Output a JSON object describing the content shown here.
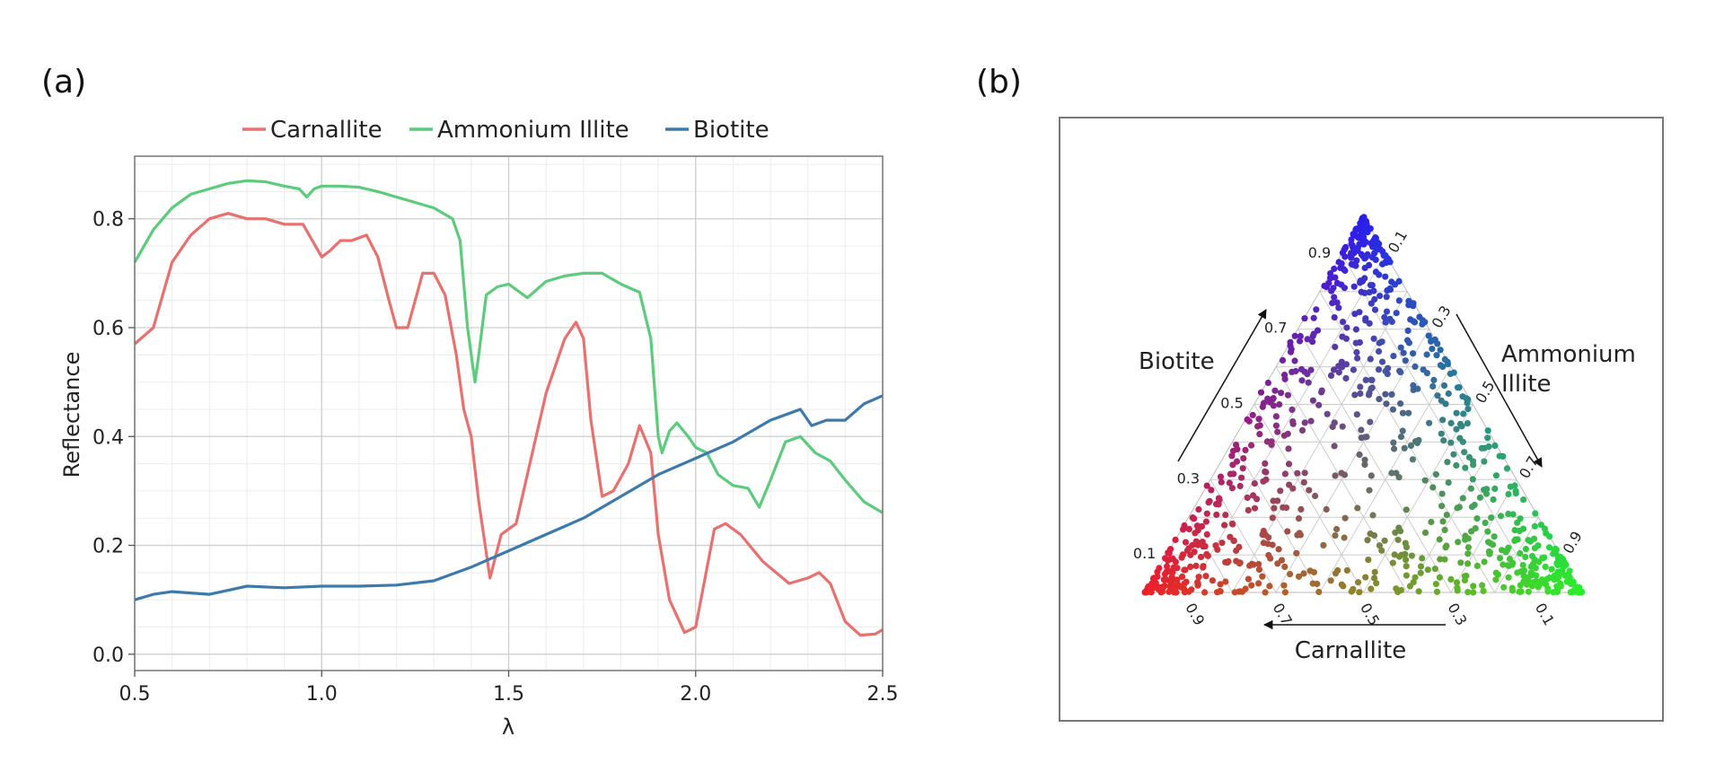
{
  "panels": {
    "a_label": "(a)",
    "b_label": "(b)"
  },
  "chart_data": [
    {
      "type": "line",
      "xlabel": "λ",
      "ylabel": "Reflectance",
      "xlim": [
        0.5,
        2.5
      ],
      "ylim": [
        0.0,
        0.9
      ],
      "xticks": [
        0.5,
        1.0,
        1.5,
        2.0,
        2.5
      ],
      "xtick_labels": [
        "0.5",
        "1.0",
        "1.5",
        "2.0",
        "2.5"
      ],
      "yticks": [
        0.0,
        0.2,
        0.4,
        0.6,
        0.8
      ],
      "ytick_labels": [
        "0.0",
        "0.2",
        "0.4",
        "0.6",
        "0.8"
      ],
      "grid": true,
      "legend_position": "top-center",
      "series": [
        {
          "name": "Carnallite",
          "color": "#e8706e",
          "points": [
            [
              0.5,
              0.57
            ],
            [
              0.55,
              0.6
            ],
            [
              0.6,
              0.72
            ],
            [
              0.65,
              0.77
            ],
            [
              0.7,
              0.8
            ],
            [
              0.75,
              0.81
            ],
            [
              0.8,
              0.8
            ],
            [
              0.85,
              0.8
            ],
            [
              0.9,
              0.79
            ],
            [
              0.95,
              0.79
            ],
            [
              1.0,
              0.73
            ],
            [
              1.02,
              0.74
            ],
            [
              1.05,
              0.76
            ],
            [
              1.08,
              0.76
            ],
            [
              1.12,
              0.77
            ],
            [
              1.15,
              0.73
            ],
            [
              1.18,
              0.65
            ],
            [
              1.2,
              0.6
            ],
            [
              1.23,
              0.6
            ],
            [
              1.27,
              0.7
            ],
            [
              1.3,
              0.7
            ],
            [
              1.33,
              0.66
            ],
            [
              1.36,
              0.55
            ],
            [
              1.38,
              0.45
            ],
            [
              1.4,
              0.4
            ],
            [
              1.42,
              0.28
            ],
            [
              1.45,
              0.14
            ],
            [
              1.48,
              0.22
            ],
            [
              1.52,
              0.24
            ],
            [
              1.55,
              0.33
            ],
            [
              1.6,
              0.48
            ],
            [
              1.65,
              0.58
            ],
            [
              1.68,
              0.61
            ],
            [
              1.7,
              0.58
            ],
            [
              1.72,
              0.43
            ],
            [
              1.75,
              0.29
            ],
            [
              1.78,
              0.3
            ],
            [
              1.82,
              0.35
            ],
            [
              1.85,
              0.42
            ],
            [
              1.88,
              0.37
            ],
            [
              1.9,
              0.22
            ],
            [
              1.93,
              0.1
            ],
            [
              1.97,
              0.04
            ],
            [
              2.0,
              0.05
            ],
            [
              2.05,
              0.23
            ],
            [
              2.08,
              0.24
            ],
            [
              2.12,
              0.22
            ],
            [
              2.18,
              0.17
            ],
            [
              2.25,
              0.13
            ],
            [
              2.3,
              0.14
            ],
            [
              2.33,
              0.15
            ],
            [
              2.36,
              0.13
            ],
            [
              2.4,
              0.06
            ],
            [
              2.44,
              0.035
            ],
            [
              2.48,
              0.037
            ],
            [
              2.5,
              0.045
            ]
          ]
        },
        {
          "name": "Ammonium Illite",
          "color": "#5ccb7c",
          "points": [
            [
              0.5,
              0.72
            ],
            [
              0.55,
              0.78
            ],
            [
              0.6,
              0.82
            ],
            [
              0.65,
              0.845
            ],
            [
              0.7,
              0.855
            ],
            [
              0.75,
              0.865
            ],
            [
              0.8,
              0.87
            ],
            [
              0.85,
              0.868
            ],
            [
              0.9,
              0.86
            ],
            [
              0.94,
              0.855
            ],
            [
              0.96,
              0.84
            ],
            [
              0.98,
              0.855
            ],
            [
              1.0,
              0.86
            ],
            [
              1.05,
              0.86
            ],
            [
              1.1,
              0.858
            ],
            [
              1.15,
              0.85
            ],
            [
              1.2,
              0.84
            ],
            [
              1.25,
              0.83
            ],
            [
              1.3,
              0.82
            ],
            [
              1.35,
              0.8
            ],
            [
              1.37,
              0.76
            ],
            [
              1.39,
              0.6
            ],
            [
              1.41,
              0.5
            ],
            [
              1.42,
              0.55
            ],
            [
              1.44,
              0.66
            ],
            [
              1.47,
              0.675
            ],
            [
              1.5,
              0.68
            ],
            [
              1.55,
              0.655
            ],
            [
              1.6,
              0.685
            ],
            [
              1.65,
              0.695
            ],
            [
              1.7,
              0.7
            ],
            [
              1.75,
              0.7
            ],
            [
              1.8,
              0.68
            ],
            [
              1.85,
              0.665
            ],
            [
              1.88,
              0.58
            ],
            [
              1.9,
              0.4
            ],
            [
              1.91,
              0.37
            ],
            [
              1.93,
              0.41
            ],
            [
              1.95,
              0.425
            ],
            [
              1.98,
              0.4
            ],
            [
              2.0,
              0.38
            ],
            [
              2.03,
              0.37
            ],
            [
              2.06,
              0.33
            ],
            [
              2.1,
              0.31
            ],
            [
              2.14,
              0.305
            ],
            [
              2.17,
              0.27
            ],
            [
              2.2,
              0.32
            ],
            [
              2.24,
              0.39
            ],
            [
              2.28,
              0.4
            ],
            [
              2.32,
              0.37
            ],
            [
              2.36,
              0.355
            ],
            [
              2.4,
              0.32
            ],
            [
              2.45,
              0.28
            ],
            [
              2.5,
              0.26
            ]
          ]
        },
        {
          "name": "Biotite",
          "color": "#3d7aab",
          "points": [
            [
              0.5,
              0.1
            ],
            [
              0.55,
              0.11
            ],
            [
              0.6,
              0.115
            ],
            [
              0.7,
              0.11
            ],
            [
              0.8,
              0.125
            ],
            [
              0.9,
              0.122
            ],
            [
              1.0,
              0.125
            ],
            [
              1.1,
              0.125
            ],
            [
              1.2,
              0.127
            ],
            [
              1.3,
              0.135
            ],
            [
              1.4,
              0.16
            ],
            [
              1.5,
              0.19
            ],
            [
              1.6,
              0.22
            ],
            [
              1.7,
              0.25
            ],
            [
              1.8,
              0.29
            ],
            [
              1.9,
              0.33
            ],
            [
              2.0,
              0.36
            ],
            [
              2.1,
              0.39
            ],
            [
              2.2,
              0.43
            ],
            [
              2.28,
              0.45
            ],
            [
              2.31,
              0.42
            ],
            [
              2.35,
              0.43
            ],
            [
              2.4,
              0.43
            ],
            [
              2.45,
              0.46
            ],
            [
              2.5,
              0.475
            ]
          ]
        }
      ]
    },
    {
      "type": "scatter",
      "subtype": "ternary",
      "axes": {
        "left_label": "Biotite",
        "right_label_line1": "Ammonium",
        "right_label_line2": "Illite",
        "bottom_label": "Carnallite"
      },
      "left_ticks": [
        "0.1",
        "0.3",
        "0.5",
        "0.7",
        "0.9"
      ],
      "right_ticks": [
        "0.1",
        "0.3",
        "0.5",
        "0.7",
        "0.9"
      ],
      "bottom_ticks": [
        "0.9",
        "0.7",
        "0.5",
        "0.3",
        "0.1"
      ],
      "vertex_colors": {
        "carnallite": "#e0302a",
        "ammonium_illite": "#66ee44",
        "biotite": "#0a2ae8"
      },
      "sample_count": 900,
      "point_color_rule": "RGB mixture: red = Carnallite, green = Ammonium Illite, blue = Biotite fraction"
    }
  ]
}
